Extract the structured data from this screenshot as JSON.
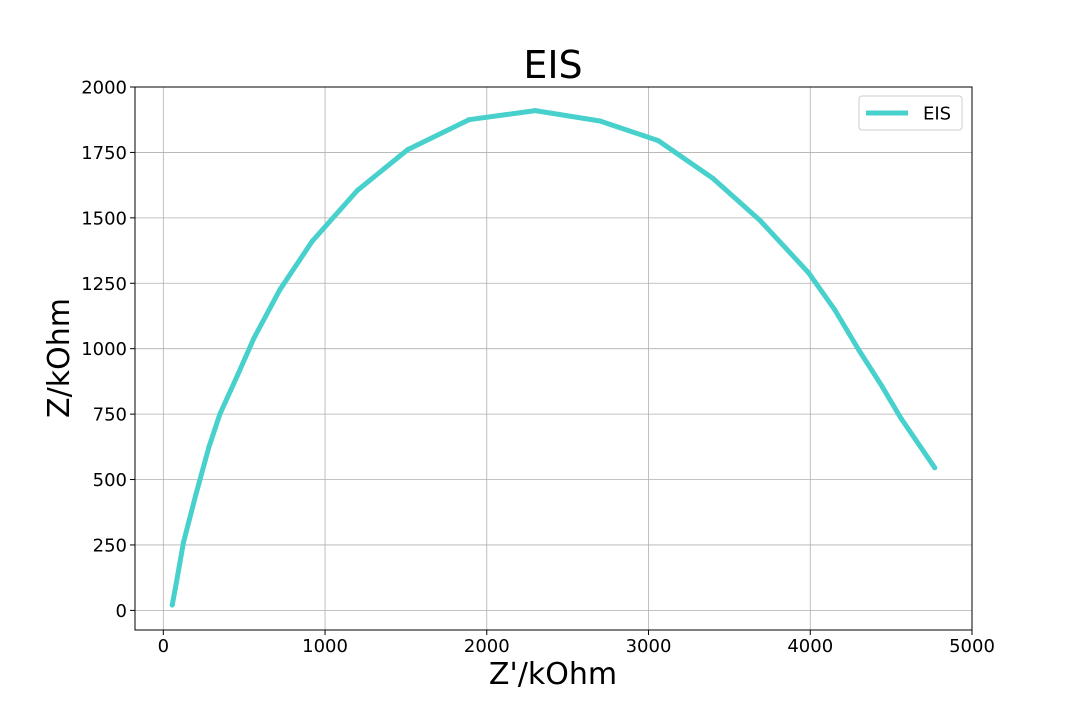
{
  "chart_data": {
    "type": "line",
    "title": "EIS",
    "xlabel": "Z'/kOhm",
    "ylabel": "Z/kOhm",
    "xlim": [
      -175,
      5000
    ],
    "ylim": [
      -75,
      2000
    ],
    "xticks": [
      0,
      1000,
      2000,
      3000,
      4000,
      5000
    ],
    "yticks": [
      0,
      250,
      500,
      750,
      1000,
      1250,
      1500,
      1750,
      2000
    ],
    "grid": true,
    "legend_position": "upper-right",
    "series": [
      {
        "name": "EIS",
        "color": "#48d1cc",
        "x": [
          55,
          75,
          125,
          200,
          280,
          350,
          460,
          560,
          720,
          920,
          1200,
          1510,
          1890,
          2300,
          2700,
          3060,
          3400,
          3690,
          3990,
          4150,
          4300,
          4440,
          4560,
          4770
        ],
        "y": [
          20,
          85,
          260,
          440,
          620,
          750,
          900,
          1040,
          1225,
          1410,
          1605,
          1760,
          1875,
          1910,
          1870,
          1795,
          1650,
          1490,
          1290,
          1150,
          995,
          860,
          735,
          545
        ]
      }
    ]
  }
}
